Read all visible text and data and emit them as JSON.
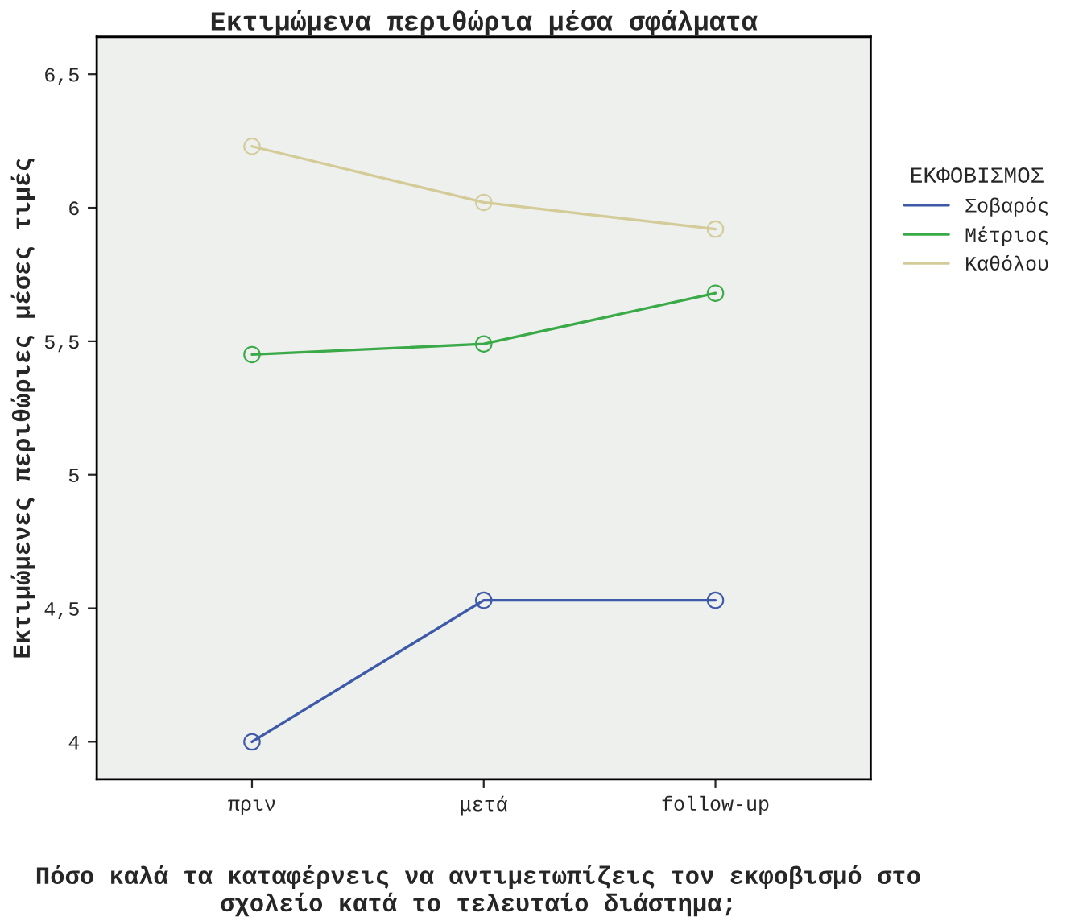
{
  "chart_data": {
    "type": "line",
    "title": "Εκτιμώμενα περιθώρια μέσα σφάλματα",
    "xlabel": "Πόσο καλά τα καταφέρνεις να αντιμετωπίζεις τον εκφοβισμό στο σχολείο κατά το τελευταίο διάστημα;",
    "ylabel": "Εκτιμώμενες περιθώριες μέσες τιμές",
    "legend_title": "ΕΚΦΟΒΙΣΜΟΣ",
    "categories": [
      "πριν",
      "μετά",
      "follow-up"
    ],
    "series": [
      {
        "name": "Σοβαρός",
        "color": "#3e59a8",
        "values": [
          4.0,
          4.53,
          4.53
        ]
      },
      {
        "name": "Μέτριος",
        "color": "#3aaa48",
        "values": [
          5.45,
          5.49,
          5.68
        ]
      },
      {
        "name": "Καθόλου",
        "color": "#d4cc98",
        "values": [
          6.23,
          6.02,
          5.92
        ]
      }
    ],
    "ylim": [
      3.86,
      6.64
    ],
    "yticks": [
      4,
      {
        "value": 4.5,
        "label": "4,5"
      },
      5,
      {
        "value": 5.5,
        "label": "5,5"
      },
      6,
      {
        "value": 6.5,
        "label": "6,5"
      }
    ],
    "marker": "circle",
    "line_style": "solid",
    "legend": "right",
    "grid": false
  }
}
